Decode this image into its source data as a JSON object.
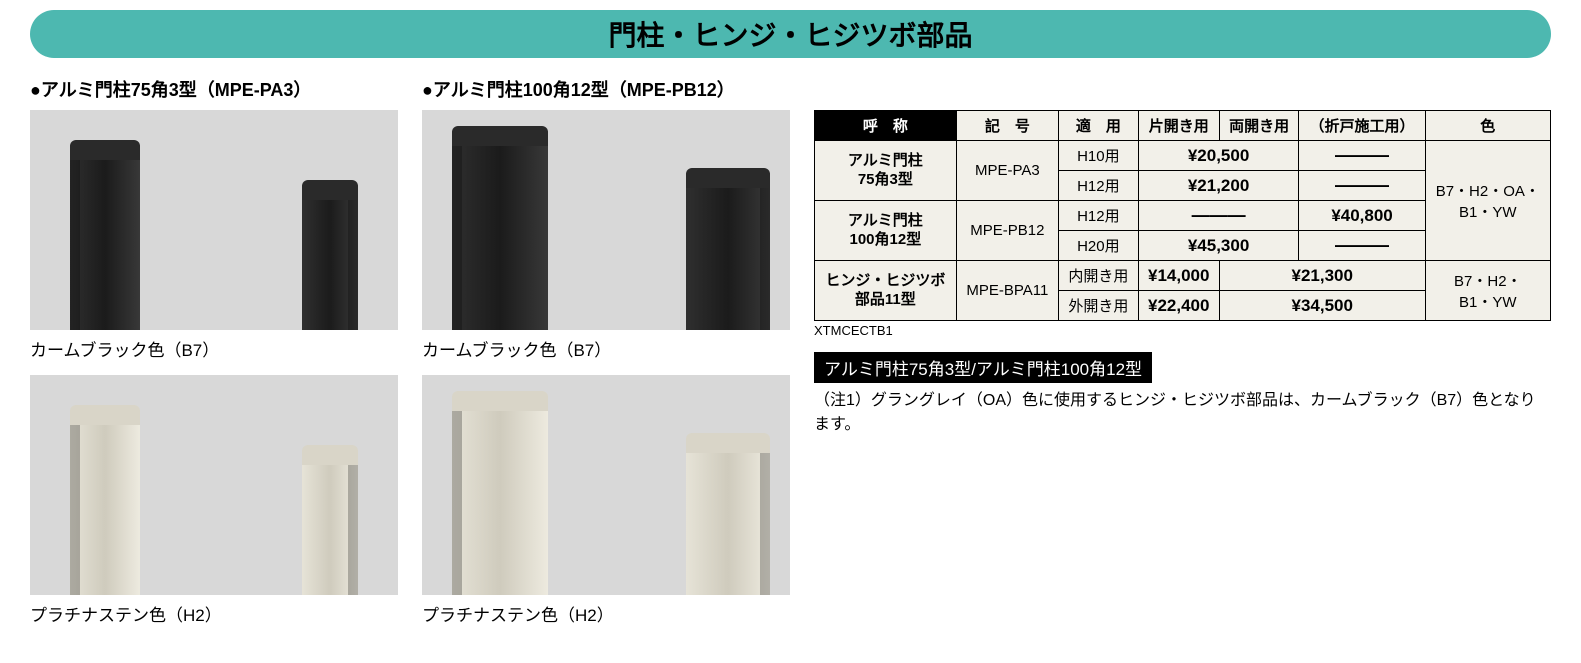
{
  "title": "門柱・ヒンジ・ヒジツボ部品",
  "products": {
    "left_heading": "●アルミ門柱75角3型（MPE-PA3）",
    "right_heading": "●アルミ門柱100角12型（MPE-PB12）",
    "swatch_black": "カームブラック色（B7）",
    "swatch_steel": "プラチナステン色（H2）"
  },
  "table": {
    "headers": {
      "name": "呼　称",
      "code": "記　号",
      "apply": "適　用",
      "single": "片開き用",
      "double": "両開き用",
      "folding": "（折戸施工用）",
      "color": "色"
    },
    "rows": {
      "r1_name": "アルミ門柱\n75角3型",
      "r1_code": "MPE-PA3",
      "r1_a": "H10用",
      "r1_price_a": "¥20,500",
      "r1_b": "H12用",
      "r1_price_b": "¥21,200",
      "r2_name": "アルミ門柱\n100角12型",
      "r2_code": "MPE-PB12",
      "r2_a": "H12用",
      "r2_fold_a": "¥40,800",
      "r2_b": "H20用",
      "r2_price_b": "¥45,300",
      "r3_name": "ヒンジ・ヒジツボ\n部品11型",
      "r3_code": "MPE-BPA11",
      "r3_a": "内開き用",
      "r3_single_a": "¥14,000",
      "r3_double_a": "¥21,300",
      "r3_b": "外開き用",
      "r3_single_b": "¥22,400",
      "r3_double_b": "¥34,500",
      "color1": "B7・H2・OA・\nB1・YW",
      "color2": "B7・H2・\nB1・YW",
      "dash": "―――"
    },
    "code_note": "XTMCECTB1"
  },
  "note": {
    "label": "アルミ門柱75角3型/アルミ門柱100角12型",
    "text": "（注1）グラングレイ（OA）色に使用するヒンジ・ヒジツボ部品は、カームブラック（B7）色となります。"
  }
}
